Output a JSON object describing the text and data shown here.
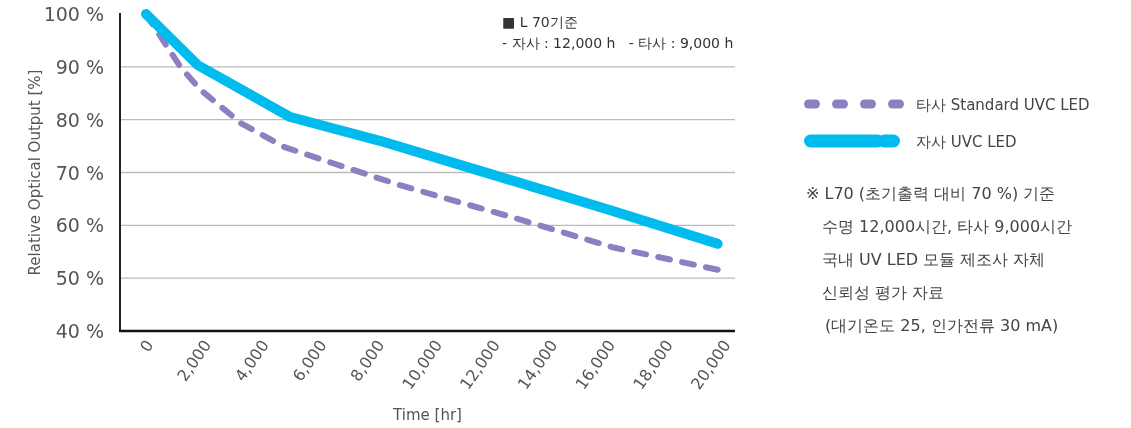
{
  "chart_data": {
    "type": "line",
    "xlabel": "Time [hr]",
    "ylabel": "Relative Optical Output [%]",
    "xlim": [
      -900,
      20400
    ],
    "ylim": [
      40,
      100
    ],
    "xticks": [
      0,
      {
        "value": 2000,
        "label": "2,000"
      },
      {
        "value": 4000,
        "label": "4,000"
      },
      {
        "value": 6000,
        "label": "6,000"
      },
      {
        "value": 8000,
        "label": "8,000"
      },
      {
        "value": 10000,
        "label": "10,000"
      },
      {
        "value": 12000,
        "label": "12,000"
      },
      {
        "value": 14000,
        "label": "14,000"
      },
      {
        "value": 16000,
        "label": "16,000"
      },
      {
        "value": 18000,
        "label": "18,000"
      },
      {
        "value": 20000,
        "label": "20,000"
      }
    ],
    "yticks": [
      {
        "value": 40,
        "label": "40 %"
      },
      {
        "value": 50,
        "label": "50 %"
      },
      {
        "value": 60,
        "label": "60 %"
      },
      {
        "value": 70,
        "label": "70 %"
      },
      {
        "value": 80,
        "label": "80 %"
      },
      {
        "value": 90,
        "label": "90 %"
      },
      {
        "value": 100,
        "label": "100 %"
      }
    ],
    "grid": "y",
    "legend": "right",
    "series": [
      {
        "name": "타사 Standard UVC LED",
        "color": "#8e80c0",
        "line_style": "dashed",
        "x": [
          0,
          1200,
          1900,
          3300,
          4800,
          6500,
          8800,
          12700,
          16200,
          19800
        ],
        "values": [
          100,
          89.9,
          85.6,
          79.3,
          74.8,
          71.7,
          67.6,
          61.5,
          55.8,
          51.6
        ]
      },
      {
        "name": "자사 UVC LED",
        "color": "#00bbee",
        "line_style": "solid",
        "x": [
          0,
          1800,
          5000,
          8100,
          12000,
          16000,
          19800
        ],
        "values": [
          100,
          90.3,
          80.5,
          76.0,
          69.6,
          63.0,
          56.5
        ]
      }
    ],
    "annotations": [
      "■ L 70기준",
      "- 자사 : 12,000 h   - 타사 : 9,000 h",
      "※ L70 (초기출력 대비 70 %) 기준",
      "수명 12,000시간, 타사 9,000시간",
      "국내 UV LED 모듈 제조사 자체",
      "신뢰성 평가 자료",
      "(대기온도 25, 인가전류 30 mA)"
    ]
  }
}
